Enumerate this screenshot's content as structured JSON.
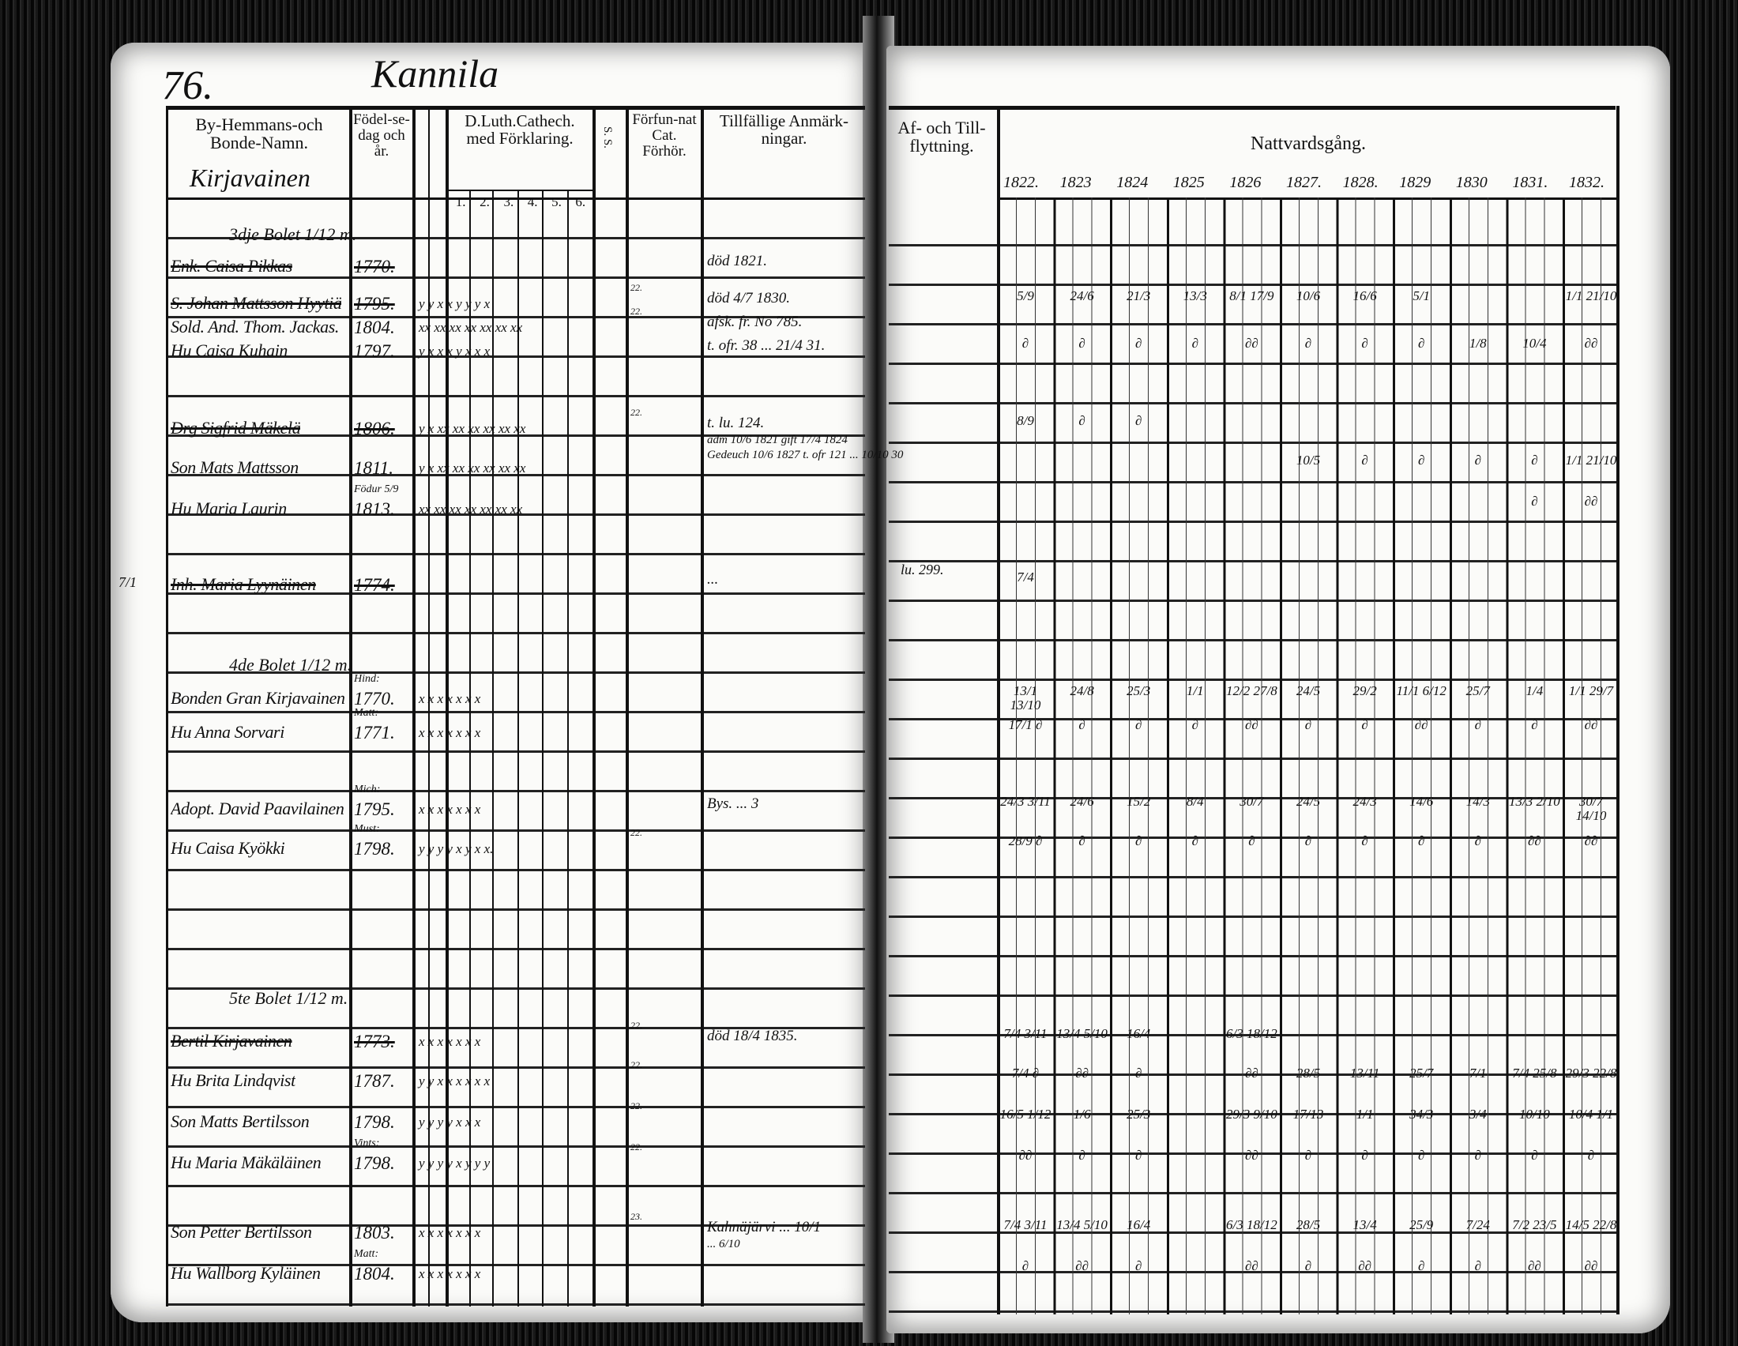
{
  "page_number": "76.",
  "farm_title": "Kannila",
  "village": "Kirjavainen",
  "headers": {
    "name": "By-Hemmans-och Bonde-Namn.",
    "birth": "Födel-se-dag och år.",
    "catechism": "D.Luth.Cathech. med Förklaring.",
    "catechism_parts": [
      "1.",
      "2.",
      "3.",
      "4.",
      "5.",
      "6."
    ],
    "ss": "S. S.",
    "forfunnat": "Förfun-nat Cat. Förhör.",
    "remarks": "Tillfällige Anmärk-ningar.",
    "moving": "Af- och Till-flyttning.",
    "communion": "Nattvardsgång.",
    "years": [
      "1822.",
      "1823",
      "1824",
      "1825",
      "1826",
      "1827.",
      "1828.",
      "1829",
      "1830",
      "1831.",
      "1832."
    ]
  },
  "margin_note": "7/1",
  "entries": [
    {
      "name": "3dje Bolet 1/12 m.",
      "section": true
    },
    {
      "name": "Enk. Caisa Pikkas",
      "birth": "1770.",
      "struck": true,
      "remarks": "död 1821."
    },
    {
      "name": "S. Johan Mattsson Hyytiä",
      "birth": "1795.",
      "struck": true,
      "marks": "y y  x  x  y  y  y  x",
      "ss": "22.",
      "remarks": "död 4/7 1830.",
      "communion": [
        "5/9",
        "24/6",
        "21/3",
        "13/3",
        "8/1 17/9",
        "10/6",
        "16/6",
        "5/1",
        "",
        "",
        "1/1 21/10"
      ]
    },
    {
      "name": "Sold. And. Thom. Jackas.",
      "birth": "1804.",
      "marks": "xx xx xx xx xx xx xx",
      "ss": "22.",
      "remarks": "afsk. fr. No 785."
    },
    {
      "name": "Hu Caisa Kuhain",
      "birth": "1797.",
      "marks": "y x  x  x  y  x  x  x",
      "remarks": "t. ofr. 38 ... 21/4 31.",
      "communion": [
        "∂",
        "∂",
        "∂",
        "∂",
        "∂∂",
        "∂",
        "∂",
        "∂",
        "1/8",
        "10/4",
        "∂∂"
      ]
    },
    {
      "name": "Drg Sigfrid Mäkelä",
      "birth": "1806.",
      "struck": true,
      "marks": "y  x xx xx xx xx xx xx",
      "ss": "22.",
      "remarks": "t. lu. 124.",
      "remarks2": "adm 10/6 1821 gift 17/4 1824",
      "remarks3": "Gedeuch 10/6 1827 t. ofr 121 ... 10/10 30",
      "communion": [
        "8/9",
        "∂",
        "∂",
        "",
        "",
        "",
        "",
        "",
        "",
        "",
        ""
      ]
    },
    {
      "name": "Son Mats Mattsson",
      "birth": "1811.",
      "marks": "y x xx xx xx xx xx xx",
      "communion": [
        "",
        "",
        "",
        "",
        "",
        "10/5",
        "∂",
        "∂",
        "∂",
        "∂",
        "1/1 21/10"
      ]
    },
    {
      "name": "Hu Maria Laurin",
      "birth": "Födur 5/9 1813.",
      "marks": "xx xx xx xx xx xx xx",
      "communion": [
        "",
        "",
        "",
        "",
        "",
        "",
        "",
        "",
        "",
        "∂",
        "∂∂"
      ]
    },
    {
      "name": "Inh. Maria Lyynäinen",
      "birth": "1774.",
      "struck": true,
      "remarks": "... ",
      "moving": "lu. 299.",
      "communion": [
        "7/4",
        "",
        "",
        "",
        "",
        "",
        "",
        "",
        "",
        "",
        ""
      ]
    },
    {
      "name": "4de Bolet 1/12 m.",
      "section": true
    },
    {
      "name": "Bonden Gran Kirjavainen",
      "birth": "Hind: 1770.",
      "marks": "x  x  x  x  x  x  x",
      "communion": [
        "13/1 13/10",
        "24/8",
        "25/3",
        "1/1",
        "12/2 27/8",
        "24/5",
        "29/2",
        "11/1 6/12",
        "25/7",
        "1/4",
        "1/1 29/7"
      ]
    },
    {
      "name": "Hu Anna Sorvari",
      "birth": "Matt: 1771.",
      "marks": "x  x  x  x  x  x  x",
      "communion": [
        "17/1 ∂",
        "∂",
        "∂",
        "∂",
        "∂∂",
        "∂",
        "∂",
        "∂∂",
        "∂",
        "∂",
        "∂∂"
      ]
    },
    {
      "name": "Adopt. David Paavilainen",
      "birth": "Mich: 1795.",
      "marks": "x  x  x  x  x  x  x",
      "remarks": "Bys. ... 3",
      "communion": [
        "24/3 3/11",
        "24/6",
        "15/2",
        "8/4",
        "30/7",
        "24/5",
        "24/3",
        "14/6",
        "14/3",
        "13/3 2/10",
        "30/7 14/10"
      ]
    },
    {
      "name": "Hu Caisa Kyökki",
      "birth": "Must: 1798.",
      "marks": "y y  y  y  x  y  x  x.",
      "ss": "22.",
      "communion": [
        "28/9 ∂",
        "∂",
        "∂",
        "∂",
        "∂",
        "∂",
        "∂",
        "∂",
        "∂",
        "∂∂",
        "∂∂"
      ]
    },
    {
      "name": "5te Bolet 1/12 m.",
      "section": true
    },
    {
      "name": "Bertil Kirjavainen",
      "birth": "1773.",
      "struck": true,
      "marks": "x  x  x  x  x  x  x",
      "ss": "22.",
      "remarks": "död 18/4 1835.",
      "communion": [
        "7/4 3/11",
        "13/4 5/10",
        "16/4",
        "",
        "6/3 18/12",
        "",
        "",
        "",
        "",
        "",
        ""
      ]
    },
    {
      "name": "Hu Brita Lindqvist",
      "birth": "1787.",
      "marks": "y y  x  x  x  x  x  x",
      "ss": "22.",
      "communion": [
        "7/4 ∂",
        "∂∂",
        "∂",
        "",
        "∂∂",
        "28/5",
        "13/11",
        "25/7",
        "7/1",
        "7/4 25/8",
        "29/3 22/8"
      ]
    },
    {
      "name": "Son Matts Bertilsson",
      "birth": "1798.",
      "marks": "y  y  y  y  x  x  x",
      "ss": "22.",
      "communion": [
        "16/5 1/12",
        "1/6",
        "25/3",
        "",
        "29/3 9/10",
        "17/13",
        "1/1",
        "34/3",
        "3/4",
        "10/10",
        "10/4 1/1"
      ]
    },
    {
      "name": "Hu Maria Mäkäläinen",
      "birth": "Vints: 1798.",
      "marks": "y y  y  y  x  y  y  y",
      "ss": "22.",
      "communion": [
        "∂∂",
        "∂",
        "∂",
        "",
        "∂∂",
        "∂",
        "∂",
        "∂",
        "∂",
        "∂",
        "∂"
      ]
    },
    {
      "name": "Son Petter Bertilsson",
      "birth": "1803.",
      "marks": "x  x  x  x  x  x  x",
      "ss": "23.",
      "remarks": "Kahnäjärvi ... 10/1",
      "remarks2": "... 6/10",
      "communion": [
        "7/4 3/11",
        "13/4 5/10",
        "16/4",
        "",
        "6/3 18/12",
        "28/5",
        "13/4",
        "25/9",
        "7/24",
        "7/2 23/5",
        "14/5 22/8"
      ]
    },
    {
      "name": "Hu Wallborg Kyläinen",
      "birth": "Matt: 1804.",
      "marks": "x  x  x  x  x  x  x",
      "communion": [
        "∂",
        "∂∂",
        "∂",
        "",
        "∂∂",
        "∂",
        "∂∂",
        "∂",
        "∂",
        "∂∂",
        "∂∂"
      ]
    }
  ]
}
